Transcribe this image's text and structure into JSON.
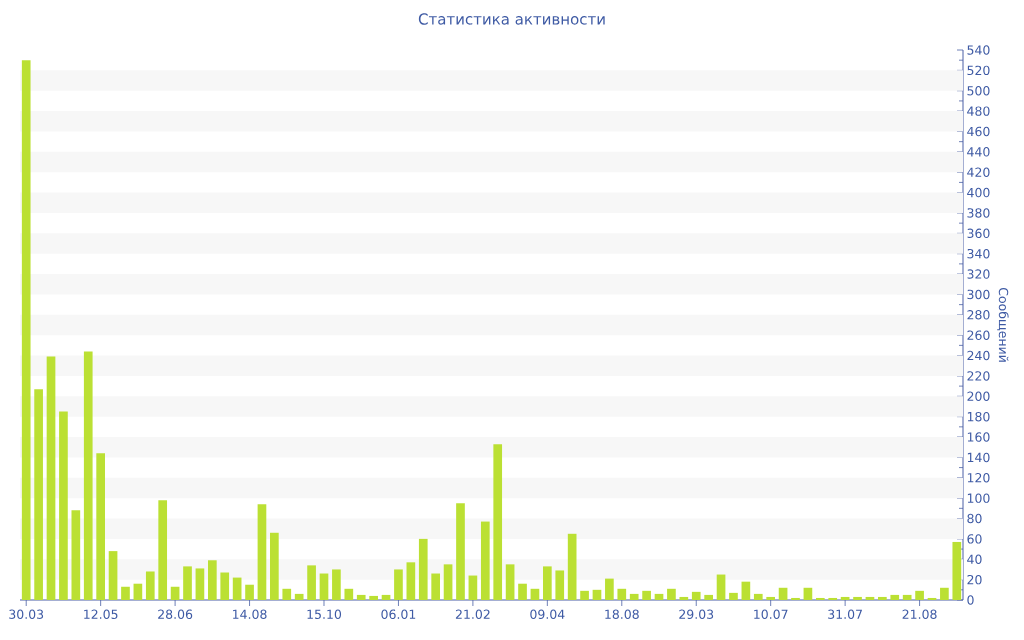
{
  "chart_data": {
    "type": "bar",
    "title": "Статистика активности",
    "ylabel": "Сообщений",
    "categories": [
      "30.03",
      null,
      null,
      null,
      null,
      null,
      "12.05",
      null,
      null,
      null,
      null,
      null,
      "28.06",
      null,
      null,
      null,
      null,
      null,
      "14.08",
      null,
      null,
      null,
      null,
      null,
      "15.10",
      null,
      null,
      null,
      null,
      null,
      "06.01",
      null,
      null,
      null,
      null,
      null,
      "21.02",
      null,
      null,
      null,
      null,
      null,
      "09.04",
      null,
      null,
      null,
      null,
      null,
      "18.08",
      null,
      null,
      null,
      null,
      null,
      "29.03",
      null,
      null,
      null,
      null,
      null,
      "10.07",
      null,
      null,
      null,
      null,
      null,
      "31.07",
      null,
      null,
      null,
      null,
      null,
      "21.08",
      null,
      null,
      null
    ],
    "values": [
      530,
      207,
      239,
      185,
      88,
      244,
      144,
      48,
      13,
      16,
      28,
      98,
      13,
      33,
      31,
      39,
      27,
      22,
      15,
      94,
      66,
      11,
      6,
      34,
      26,
      30,
      11,
      5,
      4,
      5,
      30,
      37,
      60,
      26,
      35,
      95,
      24,
      77,
      153,
      35,
      16,
      11,
      33,
      29,
      65,
      9,
      10,
      21,
      11,
      6,
      9,
      6,
      11,
      3,
      8,
      5,
      25,
      7,
      18,
      6,
      3,
      12,
      2,
      12,
      2,
      2,
      3,
      3,
      3,
      3,
      5,
      5,
      9,
      2,
      12,
      57
    ],
    "color": "#bbe033",
    "ylim": [
      0,
      540
    ],
    "yticks": [
      0,
      20,
      40,
      60,
      80,
      100,
      120,
      140,
      160,
      180,
      200,
      220,
      240,
      260,
      280,
      300,
      320,
      340,
      360,
      380,
      400,
      420,
      440,
      460,
      480,
      500,
      520,
      540
    ],
    "bands": [
      {
        "axis": "y",
        "from": 20,
        "to": 40,
        "color": "#f7f7f7"
      },
      {
        "axis": "y",
        "from": 60,
        "to": 80,
        "color": "#f7f7f7"
      },
      {
        "axis": "y",
        "from": 100,
        "to": 120,
        "color": "#f7f7f7"
      },
      {
        "axis": "y",
        "from": 140,
        "to": 160,
        "color": "#f7f7f7"
      },
      {
        "axis": "y",
        "from": 180,
        "to": 200,
        "color": "#f7f7f7"
      },
      {
        "axis": "y",
        "from": 220,
        "to": 240,
        "color": "#f7f7f7"
      },
      {
        "axis": "y",
        "from": 260,
        "to": 280,
        "color": "#f7f7f7"
      },
      {
        "axis": "y",
        "from": 300,
        "to": 320,
        "color": "#f7f7f7"
      },
      {
        "axis": "y",
        "from": 340,
        "to": 360,
        "color": "#f7f7f7"
      },
      {
        "axis": "y",
        "from": 380,
        "to": 400,
        "color": "#f7f7f7"
      },
      {
        "axis": "y",
        "from": 420,
        "to": 440,
        "color": "#f7f7f7"
      },
      {
        "axis": "y",
        "from": 460,
        "to": 480,
        "color": "#f7f7f7"
      },
      {
        "axis": "y",
        "from": 500,
        "to": 520,
        "color": "#f7f7f7"
      }
    ]
  }
}
